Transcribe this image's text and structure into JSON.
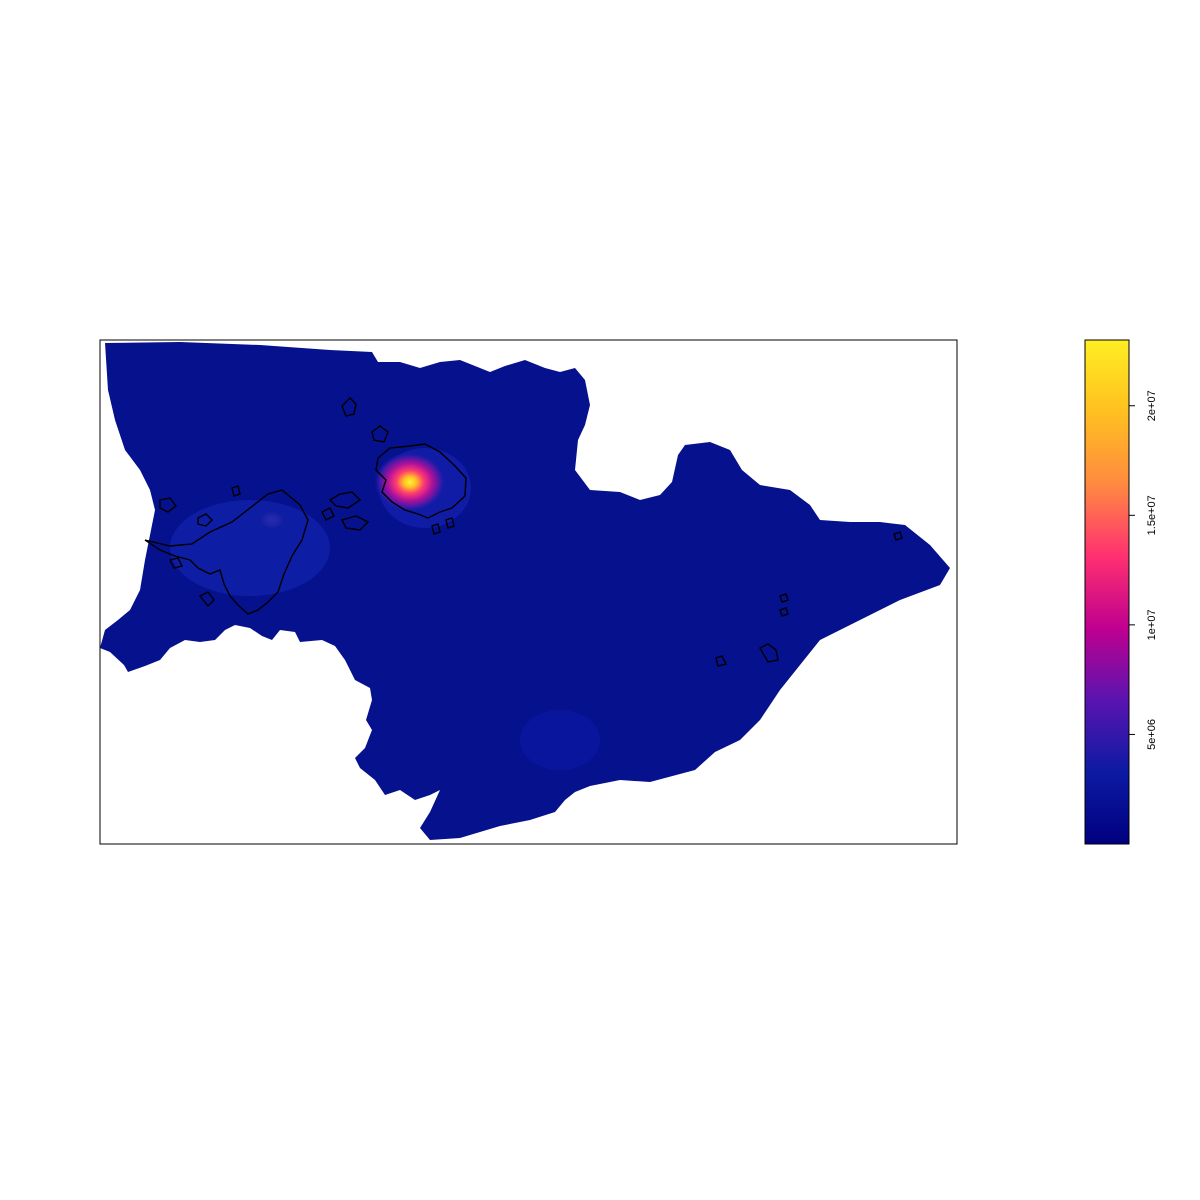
{
  "chart_data": {
    "type": "heatmap",
    "title": "",
    "xlabel": "",
    "ylabel": "",
    "grid": false,
    "legend": {
      "type": "colorbar",
      "placement": "right",
      "range": [
        0,
        23000000
      ],
      "ticks": [
        {
          "value": 5000000,
          "label": "5e+06"
        },
        {
          "value": 10000000,
          "label": "1e+07"
        },
        {
          "value": 15000000,
          "label": "1.5e+07"
        },
        {
          "value": 20000000,
          "label": "2e+07"
        }
      ]
    },
    "colormap": {
      "name": "plasma-like",
      "stops": [
        "#00007f",
        "#0c1aa3",
        "#5a14b0",
        "#c0008f",
        "#ff3070",
        "#ff8a40",
        "#ffc020",
        "#ffee22"
      ]
    },
    "background_value_color": "#06118e",
    "hotspots": [
      {
        "label": "",
        "peak_value": 22000000
      },
      {
        "label": "",
        "peak_value": 3000000
      }
    ]
  }
}
